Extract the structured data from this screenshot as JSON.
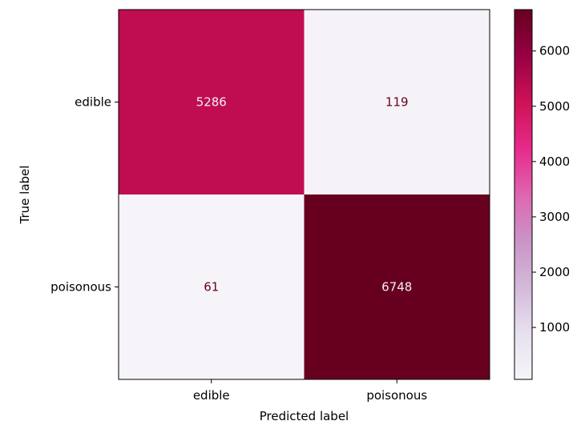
{
  "chart_data": {
    "type": "heatmap",
    "title": "",
    "xlabel": "Predicted label",
    "ylabel": "True label",
    "x_categories": [
      "edible",
      "poisonous"
    ],
    "y_categories": [
      "edible",
      "poisonous"
    ],
    "values": [
      [
        5286,
        119
      ],
      [
        61,
        6748
      ]
    ],
    "value_labels": [
      [
        "5286",
        "119"
      ],
      [
        "61",
        "6748"
      ]
    ],
    "colormap": "PuRd",
    "colorbar": {
      "vmin": 61,
      "vmax": 6748,
      "ticks": [
        1000,
        2000,
        3000,
        4000,
        5000,
        6000
      ],
      "tick_labels": [
        "1000",
        "2000",
        "3000",
        "4000",
        "5000",
        "6000"
      ]
    },
    "grid": false,
    "colors": {
      "low": "#f1eef6",
      "high": "#67001f",
      "text_on_dark": "#f1eef6",
      "text_on_light": "#67001f"
    }
  }
}
